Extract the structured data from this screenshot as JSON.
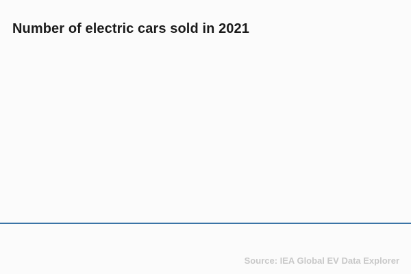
{
  "header": {
    "title": "Number of electric cars sold in 2021"
  },
  "footer": {
    "source": "Source: IEA Global EV Data Explorer"
  },
  "colors": {
    "background": "#fbfbfb",
    "title_color": "#1a1a1a",
    "axis_line_color": "#3a74a6",
    "source_color": "#c8c8c8"
  },
  "chart_data": {
    "type": "bar",
    "title": "Number of electric cars sold in 2021",
    "source": "Source: IEA Global EV Data Explorer",
    "categories": [],
    "values": [],
    "xlabel": "",
    "ylabel": "",
    "legend": false,
    "grid": false,
    "state": "empty — no series, ticks, or labels rendered; only the x-axis baseline is visible"
  }
}
